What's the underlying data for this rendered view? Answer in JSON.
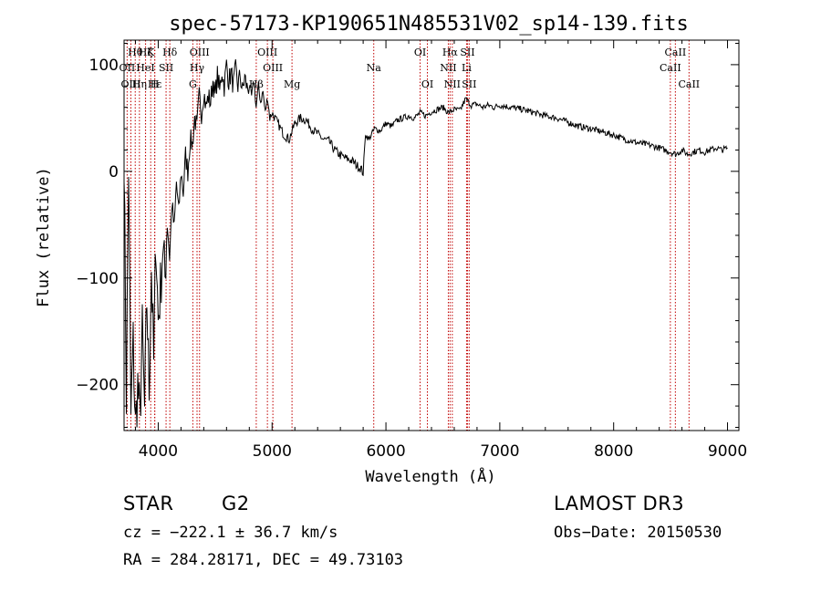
{
  "chart_data": {
    "type": "line",
    "title": "spec-57173-KP190651N485531V02_sp14-139.fits",
    "xlabel": "Wavelength (Å)",
    "ylabel": "Flux (relative)",
    "xlim": [
      3700,
      9100
    ],
    "ylim": [
      -243,
      123
    ],
    "xticks": [
      4000,
      5000,
      6000,
      7000,
      8000,
      9000
    ],
    "yticks": [
      -200,
      -100,
      0,
      100
    ],
    "grid": false,
    "series": [
      {
        "name": "flux",
        "x": [
          3700,
          3720,
          3740,
          3760,
          3780,
          3800,
          3820,
          3840,
          3860,
          3880,
          3900,
          3920,
          3940,
          3960,
          3980,
          4000,
          4020,
          4040,
          4060,
          4080,
          4100,
          4120,
          4140,
          4160,
          4180,
          4200,
          4220,
          4240,
          4260,
          4280,
          4300,
          4320,
          4340,
          4360,
          4380,
          4400,
          4420,
          4440,
          4460,
          4480,
          4500,
          4520,
          4540,
          4560,
          4580,
          4600,
          4620,
          4640,
          4660,
          4680,
          4700,
          4720,
          4740,
          4760,
          4780,
          4800,
          4820,
          4840,
          4860,
          4880,
          4900,
          4920,
          4940,
          4960,
          4980,
          5000,
          5050,
          5100,
          5150,
          5200,
          5250,
          5300,
          5350,
          5400,
          5450,
          5500,
          5550,
          5600,
          5650,
          5700,
          5750,
          5780,
          5800,
          5820,
          5850,
          5900,
          5950,
          6000,
          6050,
          6100,
          6150,
          6200,
          6250,
          6300,
          6350,
          6400,
          6450,
          6500,
          6550,
          6600,
          6650,
          6700,
          6750,
          6800,
          6850,
          6900,
          6950,
          7000,
          7100,
          7200,
          7300,
          7400,
          7500,
          7600,
          7700,
          7800,
          7900,
          8000,
          8100,
          8200,
          8300,
          8400,
          8450,
          8500,
          8550,
          8600,
          8650,
          8700,
          8750,
          8800,
          8850,
          8900,
          8950,
          9000
        ],
        "y": [
          20,
          -210,
          5,
          -230,
          -160,
          -240,
          -200,
          -235,
          -150,
          -225,
          -120,
          -205,
          -90,
          -180,
          -60,
          -140,
          -110,
          -70,
          -100,
          -40,
          -80,
          -30,
          -55,
          -10,
          -40,
          0,
          -20,
          15,
          0,
          30,
          25,
          50,
          40,
          70,
          55,
          75,
          60,
          70,
          65,
          85,
          70,
          90,
          75,
          95,
          80,
          100,
          85,
          92,
          80,
          95,
          80,
          90,
          75,
          88,
          78,
          80,
          70,
          85,
          60,
          80,
          65,
          75,
          55,
          70,
          50,
          55,
          45,
          35,
          30,
          45,
          50,
          48,
          40,
          35,
          30,
          28,
          20,
          15,
          12,
          10,
          5,
          3,
          -2,
          35,
          30,
          40,
          38,
          45,
          42,
          48,
          50,
          52,
          50,
          55,
          52,
          56,
          58,
          60,
          55,
          58,
          57,
          68,
          62,
          63,
          60,
          62,
          60,
          62,
          60,
          58,
          55,
          52,
          50,
          46,
          42,
          40,
          37,
          34,
          30,
          27,
          25,
          22,
          20,
          18,
          16,
          20,
          16,
          18,
          20,
          18,
          20,
          22,
          20,
          22
        ]
      }
    ],
    "line_markers": [
      {
        "label": "Hθ",
        "wavelength": 3798,
        "row": 0
      },
      {
        "label": "OII",
        "wavelength": 3727,
        "row": 1
      },
      {
        "label": "OIII",
        "wavelength": 3760,
        "row": 2
      },
      {
        "label": "Hη",
        "wavelength": 3835,
        "row": 2
      },
      {
        "label": "Hζ",
        "wavelength": 3889,
        "row": 0
      },
      {
        "label": "HeI",
        "wavelength": 3888,
        "row": 1
      },
      {
        "label": "K",
        "wavelength": 3934,
        "row": 0
      },
      {
        "label": "SII",
        "wavelength": 4069,
        "row": 1
      },
      {
        "label": "Hε",
        "wavelength": 3970,
        "row": 2
      },
      {
        "label": "H",
        "wavelength": 3969,
        "row": 2
      },
      {
        "label": "Hδ",
        "wavelength": 4102,
        "row": 0
      },
      {
        "label": "OIII",
        "wavelength": 4363,
        "row": 0
      },
      {
        "label": "Hγ",
        "wavelength": 4341,
        "row": 1
      },
      {
        "label": "G",
        "wavelength": 4304,
        "row": 2
      },
      {
        "label": "Hβ",
        "wavelength": 4861,
        "row": 2
      },
      {
        "label": "OIII",
        "wavelength": 4959,
        "row": 0
      },
      {
        "label": "OIII",
        "wavelength": 5007,
        "row": 1
      },
      {
        "label": "Mg",
        "wavelength": 5175,
        "row": 2
      },
      {
        "label": "Na",
        "wavelength": 5893,
        "row": 1
      },
      {
        "label": "OI",
        "wavelength": 6300,
        "row": 0
      },
      {
        "label": "OI",
        "wavelength": 6364,
        "row": 2
      },
      {
        "label": "Hα",
        "wavelength": 6563,
        "row": 0
      },
      {
        "label": "NII",
        "wavelength": 6548,
        "row": 1
      },
      {
        "label": "NII",
        "wavelength": 6583,
        "row": 2
      },
      {
        "label": "SII",
        "wavelength": 6716,
        "row": 0
      },
      {
        "label": "Li",
        "wavelength": 6708,
        "row": 1
      },
      {
        "label": "SII",
        "wavelength": 6731,
        "row": 2
      },
      {
        "label": "CaII",
        "wavelength": 8542,
        "row": 0
      },
      {
        "label": "CaII",
        "wavelength": 8498,
        "row": 1
      },
      {
        "label": "CaII",
        "wavelength": 8662,
        "row": 2
      }
    ]
  },
  "info": {
    "object_class": "STAR",
    "subclass": "G2",
    "survey": "LAMOST DR3",
    "cz": "cz = −222.1 ± 36.7 km/s",
    "obs_date": "Obs−Date: 20150530",
    "coords": "RA = 284.28171, DEC =  49.73103"
  },
  "colors": {
    "line_marker": "#c00000",
    "spectrum": "#000000"
  }
}
